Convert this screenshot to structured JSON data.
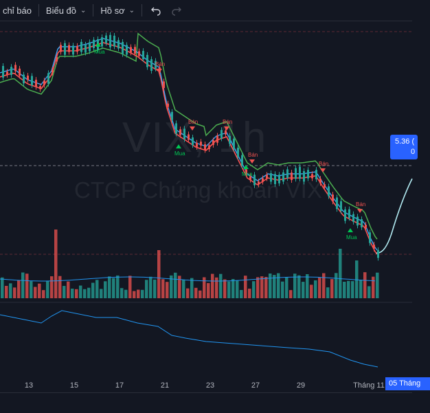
{
  "toolbar": {
    "indicators_label": "chỉ báo",
    "chart_label": "Biểu đồ",
    "profile_label": "Hồ sơ"
  },
  "watermark": {
    "symbol": "VIX, 1h",
    "company": "CTCP Chứng khoán VIX"
  },
  "price_tag": {
    "price": "5.36 (",
    "sub": "0"
  },
  "signals": {
    "buy": "Mua",
    "sell": "Bán"
  },
  "xaxis": {
    "labels": [
      {
        "text": "13"
      },
      {
        "text": "15"
      },
      {
        "text": "17"
      },
      {
        "text": "21"
      },
      {
        "text": "23"
      },
      {
        "text": "27"
      },
      {
        "text": "29"
      },
      {
        "text": "Tháng 11"
      }
    ],
    "current_date": "05 Tháng"
  },
  "colors": {
    "bg": "#131722",
    "up": "#26a69a",
    "down": "#ef5350",
    "accent": "#2962ff"
  }
}
